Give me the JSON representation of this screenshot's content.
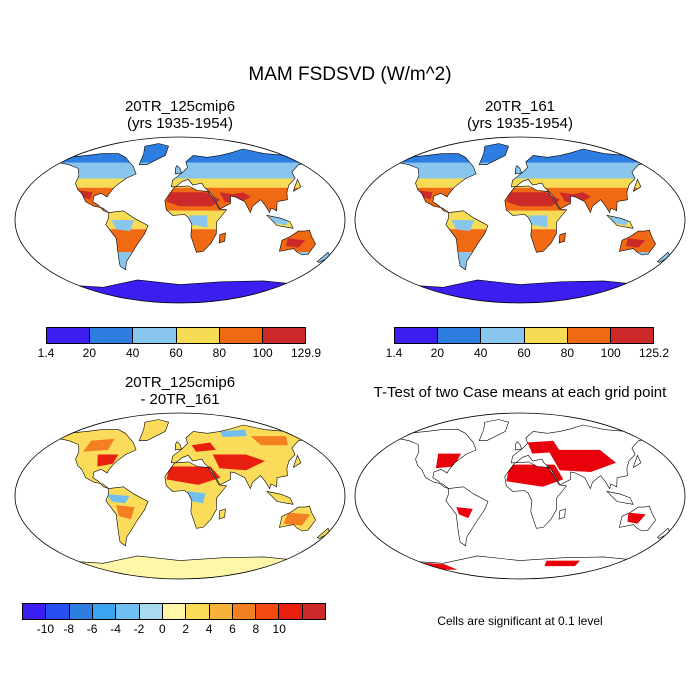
{
  "title": "MAM FSDSVD (W/m^2)",
  "panels": {
    "p1": {
      "title_line1": "20TR_125cmip6",
      "title_line2": "(yrs 1935-1954)"
    },
    "p2": {
      "title_line1": "20TR_161",
      "title_line2": "(yrs 1935-1954)"
    },
    "p3": {
      "title_line1": "20TR_125cmip6",
      "title_line2": "- 20TR_161"
    },
    "p4": {
      "title_line1": "T-Test of two Case means at each grid point"
    }
  },
  "colorbars": {
    "cb1": {
      "colors": [
        "#3a1ff0",
        "#2d7ee0",
        "#89c6ee",
        "#f6dc55",
        "#f06a13",
        "#cc2a2a"
      ],
      "labels": [
        "1.4",
        "20",
        "40",
        "60",
        "80",
        "100",
        "129.9"
      ]
    },
    "cb2": {
      "colors": [
        "#3a1ff0",
        "#2d7ee0",
        "#89c6ee",
        "#f6dc55",
        "#f06a13",
        "#cc2a2a"
      ],
      "labels": [
        "1.4",
        "20",
        "40",
        "60",
        "80",
        "100",
        "125.2"
      ]
    },
    "cb3": {
      "colors": [
        "#3a1ff0",
        "#2a4ff0",
        "#2d7ee0",
        "#3aa4f0",
        "#6fc0f0",
        "#a9dbef",
        "#fff7a8",
        "#fbdc5a",
        "#f7b23a",
        "#f28020",
        "#f24a10",
        "#e81e0e",
        "#cc2a2a"
      ],
      "labels": [
        "-10",
        "-8",
        "-6",
        "-4",
        "-2",
        "0",
        "2",
        "4",
        "6",
        "8",
        "10"
      ]
    }
  },
  "note": "Cells are significant at 0.1 level",
  "colors": {
    "land_base": "#f6dc55",
    "ocean": "#ffffff",
    "diff_base": "#fbdc5a",
    "sig": "#e8000b"
  }
}
